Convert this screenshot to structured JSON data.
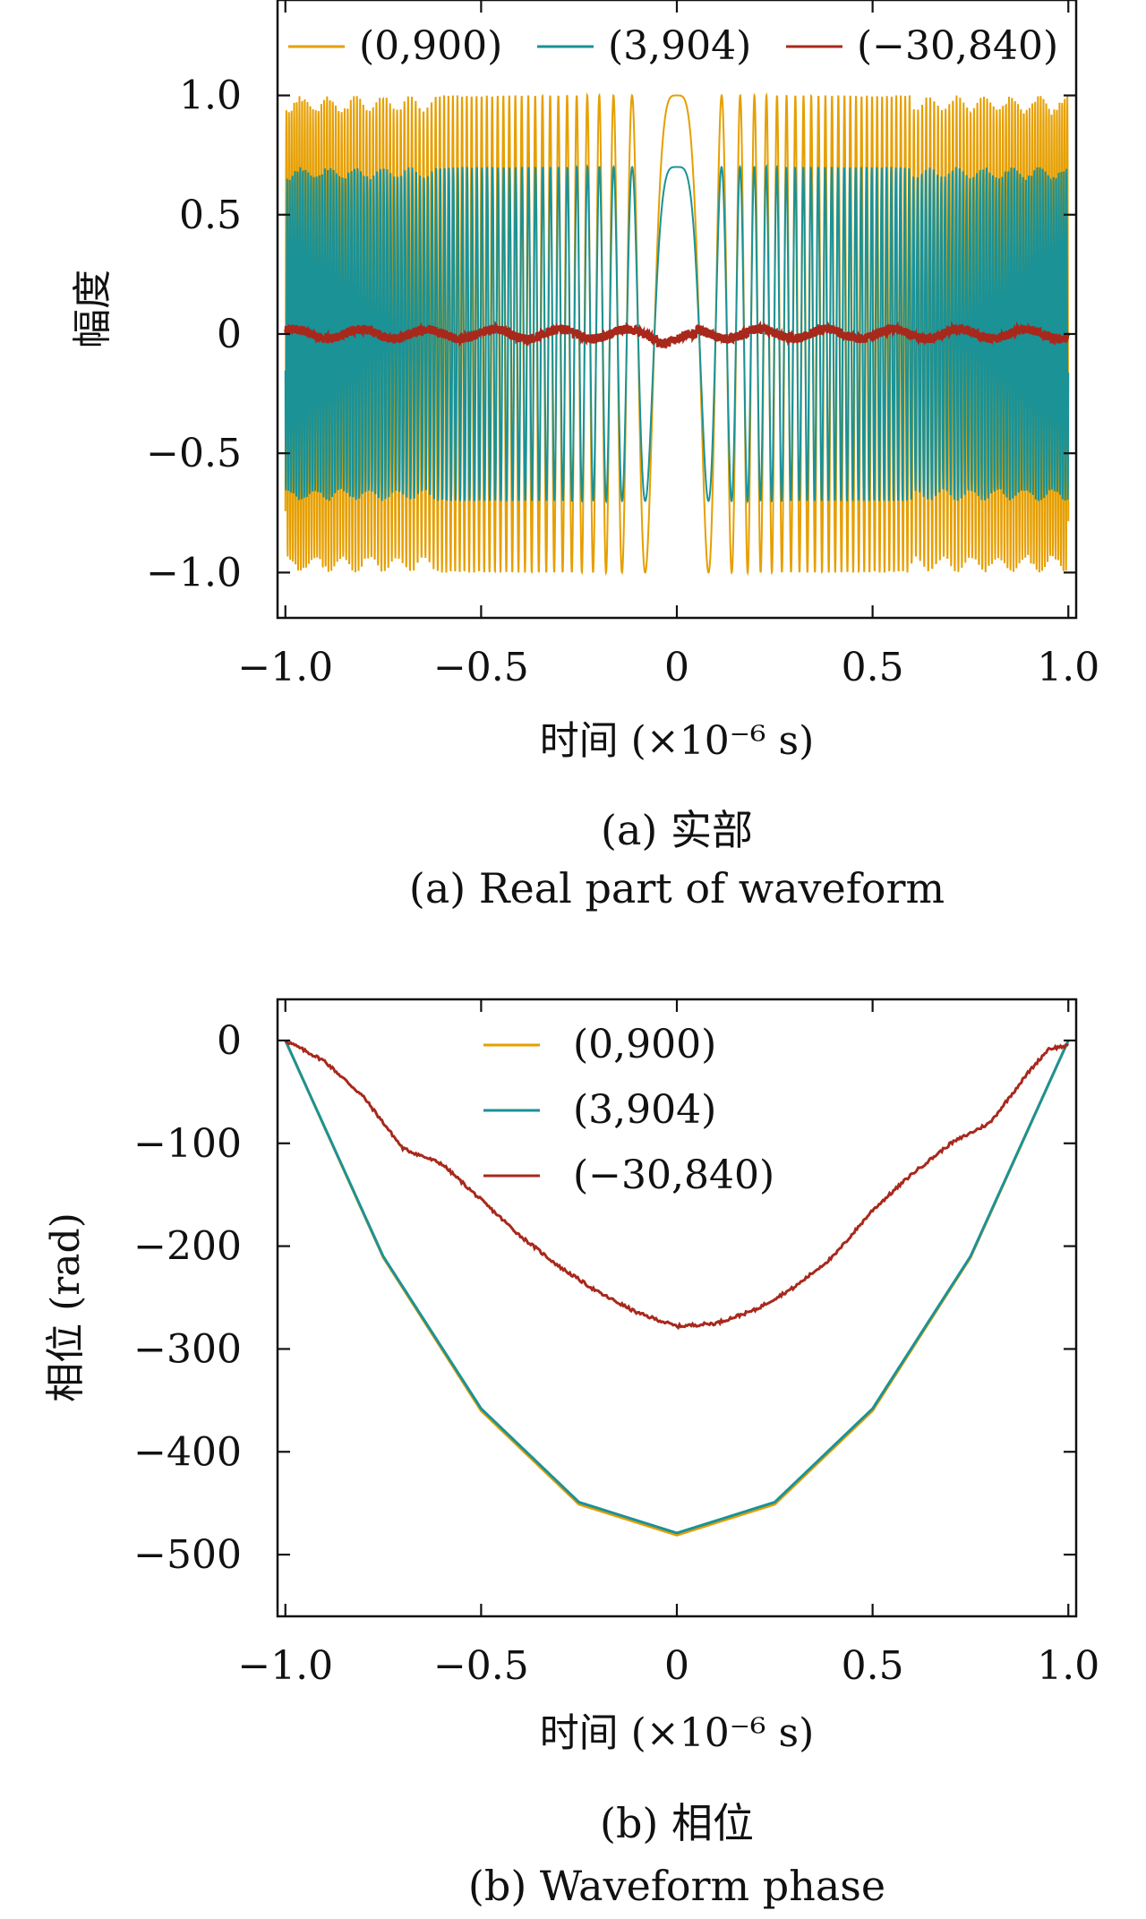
{
  "colors": {
    "s1": "#E69F00",
    "s2": "#1B9296",
    "s3": "#A8281C",
    "axis": "#111111"
  },
  "chart_data": [
    {
      "type": "line",
      "xlabel": "时间 (×10⁻⁶ s)",
      "ylabel": "幅度",
      "xlim": [
        -1.02,
        1.02
      ],
      "ylim": [
        -1.19,
        1.4
      ],
      "xticks": [
        -1.0,
        -0.5,
        0,
        0.5,
        1.0
      ],
      "xtick_labels": [
        "−1.0",
        "−0.5",
        "0",
        "0.5",
        "1.0"
      ],
      "yticks": [
        1.0,
        0.5,
        0,
        -0.5,
        -1.0
      ],
      "ytick_labels": [
        "1.0",
        "0.5",
        "0",
        "−0.5",
        "−1.0"
      ],
      "legend_position": "top",
      "caption_cn": "(a) 实部",
      "caption_en": "(a) Real part of waveform",
      "series": [
        {
          "name": "(0,900)",
          "amplitude": 1.0,
          "chirp_rate_rad_per_us2": 480,
          "appearance": "oscillating chirp, envelope ±1.0"
        },
        {
          "name": "(3,904)",
          "amplitude": 0.7,
          "chirp_rate_rad_per_us2": 482,
          "appearance": "oscillating chirp, envelope ±0.7"
        },
        {
          "name": "(−30,840)",
          "amplitude": 0.02,
          "appearance": "near-zero noisy trace"
        }
      ]
    },
    {
      "type": "line",
      "xlabel": "时间 (×10⁻⁶ s)",
      "ylabel": "相位 (rad)",
      "xlim": [
        -1.02,
        1.02
      ],
      "ylim": [
        -560,
        40
      ],
      "xticks": [
        -1.0,
        -0.5,
        0,
        0.5,
        1.0
      ],
      "xtick_labels": [
        "−1.0",
        "−0.5",
        "0",
        "0.5",
        "1.0"
      ],
      "yticks": [
        0,
        -100,
        -200,
        -300,
        -400,
        -500
      ],
      "ytick_labels": [
        "0",
        "−100",
        "−200",
        "−300",
        "−400",
        "−500"
      ],
      "legend_position": "top-center",
      "caption_cn": "(b) 相位",
      "caption_en": "(b) Waveform phase",
      "series": [
        {
          "name": "(0,900)",
          "x": [
            -1.0,
            -0.75,
            -0.5,
            -0.25,
            0,
            0.25,
            0.5,
            0.75,
            1.0
          ],
          "y": [
            0,
            -211,
            -360,
            -451,
            -481,
            -451,
            -360,
            -211,
            0
          ]
        },
        {
          "name": "(3,904)",
          "x": [
            -1.0,
            -0.75,
            -0.5,
            -0.25,
            0,
            0.25,
            0.5,
            0.75,
            1.0
          ],
          "y": [
            0,
            -210,
            -358,
            -449,
            -479,
            -449,
            -358,
            -210,
            0
          ]
        },
        {
          "name": "(−30,840)",
          "x": [
            -1.0,
            -0.9,
            -0.8,
            -0.7,
            -0.6,
            -0.5,
            -0.4,
            -0.3,
            -0.2,
            -0.1,
            0,
            0.1,
            0.2,
            0.3,
            0.4,
            0.5,
            0.6,
            0.7,
            0.8,
            0.9,
            0.95,
            1.0
          ],
          "y": [
            0,
            -20,
            -55,
            -105,
            -120,
            -155,
            -190,
            -220,
            -245,
            -265,
            -278,
            -275,
            -262,
            -240,
            -210,
            -165,
            -130,
            -100,
            -80,
            -30,
            -8,
            -5
          ]
        }
      ]
    }
  ]
}
